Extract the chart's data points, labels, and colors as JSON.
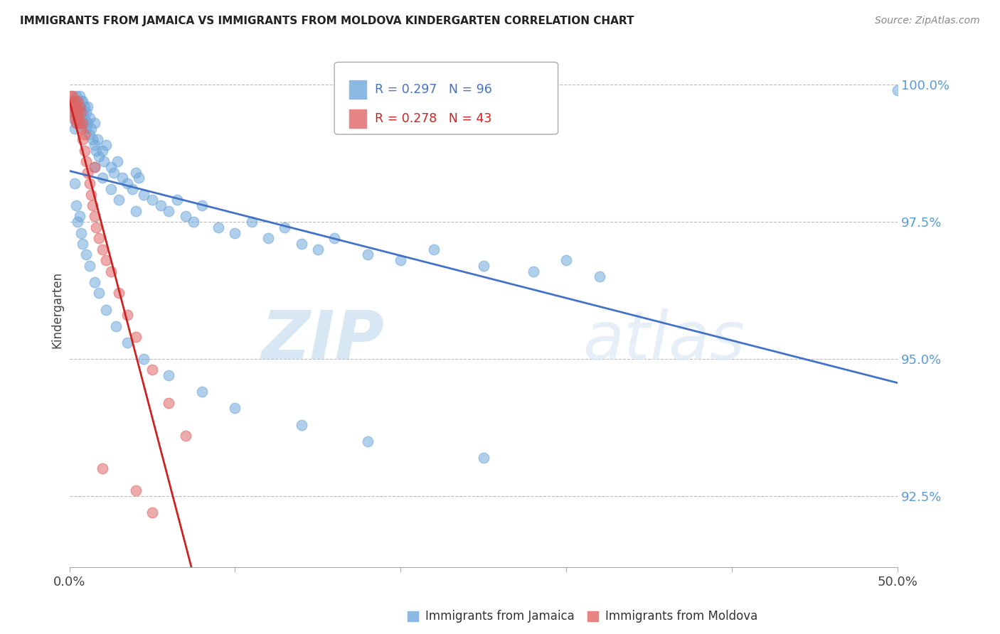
{
  "title": "IMMIGRANTS FROM JAMAICA VS IMMIGRANTS FROM MOLDOVA KINDERGARTEN CORRELATION CHART",
  "source": "Source: ZipAtlas.com",
  "ylabel": "Kindergarten",
  "yticks": [
    92.5,
    95.0,
    97.5,
    100.0
  ],
  "ytick_labels": [
    "92.5%",
    "95.0%",
    "97.5%",
    "100.0%"
  ],
  "xmin": 0.0,
  "xmax": 0.5,
  "ymin": 91.2,
  "ymax": 100.6,
  "jamaica_color": "#6fa8dc",
  "moldova_color": "#e06666",
  "jamaica_line_color": "#4472c4",
  "moldova_line_color": "#cc2222",
  "jamaica_R": 0.297,
  "jamaica_N": 96,
  "moldova_R": 0.278,
  "moldova_N": 43,
  "legend_label_jamaica": "Immigrants from Jamaica",
  "legend_label_moldova": "Immigrants from Moldova",
  "watermark_zip": "ZIP",
  "watermark_atlas": "atlas",
  "background_color": "#ffffff",
  "grid_color": "#bbbbbb",
  "tick_label_color": "#5b9bd5",
  "jamaica_x": [
    0.002,
    0.003,
    0.003,
    0.003,
    0.004,
    0.004,
    0.004,
    0.005,
    0.005,
    0.005,
    0.005,
    0.006,
    0.006,
    0.006,
    0.006,
    0.007,
    0.007,
    0.007,
    0.008,
    0.008,
    0.008,
    0.009,
    0.009,
    0.01,
    0.01,
    0.011,
    0.011,
    0.012,
    0.012,
    0.013,
    0.014,
    0.015,
    0.015,
    0.016,
    0.017,
    0.018,
    0.02,
    0.021,
    0.022,
    0.025,
    0.027,
    0.029,
    0.032,
    0.035,
    0.038,
    0.04,
    0.042,
    0.045,
    0.05,
    0.055,
    0.06,
    0.065,
    0.07,
    0.075,
    0.08,
    0.09,
    0.1,
    0.11,
    0.12,
    0.13,
    0.14,
    0.15,
    0.16,
    0.18,
    0.2,
    0.22,
    0.25,
    0.28,
    0.3,
    0.32,
    0.003,
    0.004,
    0.005,
    0.006,
    0.007,
    0.008,
    0.01,
    0.012,
    0.015,
    0.018,
    0.022,
    0.028,
    0.035,
    0.045,
    0.06,
    0.08,
    0.1,
    0.14,
    0.18,
    0.25,
    0.015,
    0.02,
    0.025,
    0.03,
    0.04,
    0.5
  ],
  "jamaica_y": [
    99.4,
    99.5,
    99.2,
    99.7,
    99.3,
    99.6,
    99.8,
    99.4,
    99.5,
    99.6,
    99.7,
    99.3,
    99.5,
    99.6,
    99.8,
    99.4,
    99.6,
    99.7,
    99.3,
    99.5,
    99.7,
    99.4,
    99.6,
    99.2,
    99.5,
    99.3,
    99.6,
    99.1,
    99.4,
    99.2,
    99.0,
    98.9,
    99.3,
    98.8,
    99.0,
    98.7,
    98.8,
    98.6,
    98.9,
    98.5,
    98.4,
    98.6,
    98.3,
    98.2,
    98.1,
    98.4,
    98.3,
    98.0,
    97.9,
    97.8,
    97.7,
    97.9,
    97.6,
    97.5,
    97.8,
    97.4,
    97.3,
    97.5,
    97.2,
    97.4,
    97.1,
    97.0,
    97.2,
    96.9,
    96.8,
    97.0,
    96.7,
    96.6,
    96.8,
    96.5,
    98.2,
    97.8,
    97.5,
    97.6,
    97.3,
    97.1,
    96.9,
    96.7,
    96.4,
    96.2,
    95.9,
    95.6,
    95.3,
    95.0,
    94.7,
    94.4,
    94.1,
    93.8,
    93.5,
    93.2,
    98.5,
    98.3,
    98.1,
    97.9,
    97.7,
    99.9
  ],
  "moldova_x": [
    0.001,
    0.001,
    0.002,
    0.002,
    0.002,
    0.003,
    0.003,
    0.003,
    0.004,
    0.004,
    0.004,
    0.005,
    0.005,
    0.005,
    0.006,
    0.006,
    0.007,
    0.007,
    0.008,
    0.008,
    0.009,
    0.009,
    0.01,
    0.011,
    0.012,
    0.013,
    0.014,
    0.015,
    0.016,
    0.018,
    0.02,
    0.022,
    0.025,
    0.03,
    0.035,
    0.04,
    0.05,
    0.06,
    0.07,
    0.015,
    0.02,
    0.04,
    0.05
  ],
  "moldova_y": [
    99.8,
    99.6,
    99.7,
    99.5,
    99.8,
    99.6,
    99.4,
    99.7,
    99.5,
    99.3,
    99.6,
    99.4,
    99.7,
    99.5,
    99.3,
    99.6,
    99.2,
    99.5,
    99.0,
    99.3,
    98.8,
    99.1,
    98.6,
    98.4,
    98.2,
    98.0,
    97.8,
    97.6,
    97.4,
    97.2,
    97.0,
    96.8,
    96.6,
    96.2,
    95.8,
    95.4,
    94.8,
    94.2,
    93.6,
    98.5,
    93.0,
    92.6,
    92.2
  ]
}
